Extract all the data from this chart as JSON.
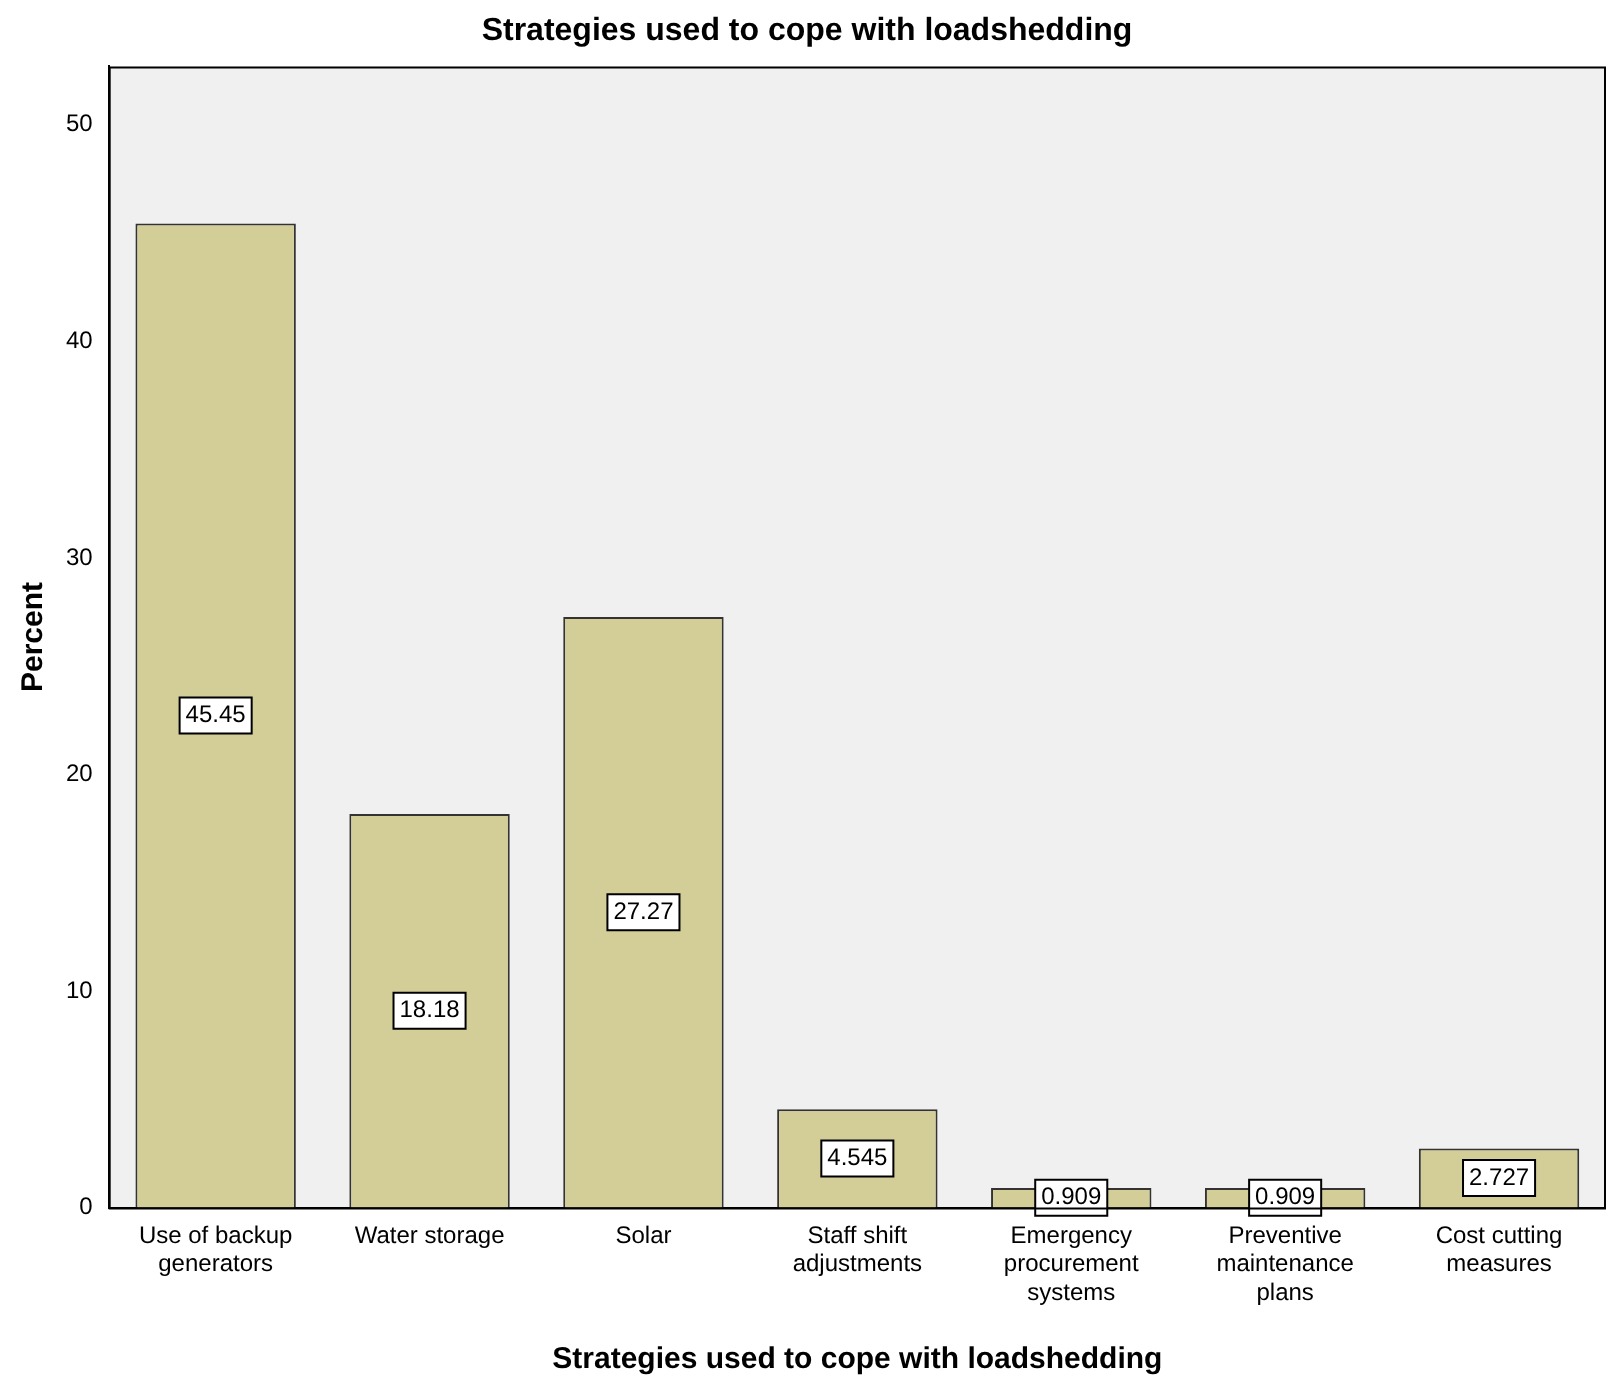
{
  "chart_data": {
    "type": "bar",
    "title": "Strategies used to cope with loadshedding",
    "xlabel": "Strategies used to cope with loadshedding",
    "ylabel": "Percent",
    "categories": [
      "Use of backup generators",
      "Water storage",
      "Solar",
      "Staff shift adjustments",
      "Emergency procurement systems",
      "Preventive maintenance plans",
      "Cost cutting measures"
    ],
    "values": [
      45.45,
      18.18,
      27.27,
      4.545,
      0.909,
      0.909,
      2.727
    ],
    "color": "#d3ce97",
    "ylim": [
      0,
      52.7
    ],
    "yticks": [
      0,
      10,
      20,
      30,
      40,
      50
    ],
    "grid": false,
    "legend": false,
    "data_labels": true
  }
}
